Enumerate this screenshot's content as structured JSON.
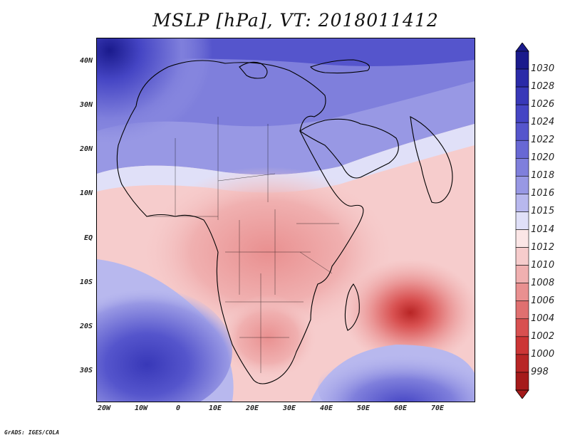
{
  "title": "MSLP [hPa], VT: 2018011412",
  "footer": "GrADS: IGES/COLA",
  "map": {
    "lat_labels": [
      "40N",
      "30N",
      "20N",
      "10N",
      "EQ",
      "10S",
      "20S",
      "30S"
    ],
    "lon_labels": [
      "20W",
      "10W",
      "0",
      "10E",
      "20E",
      "30E",
      "40E",
      "50E",
      "60E",
      "70E"
    ],
    "region": "Africa and Middle East",
    "features": [
      {
        "name": "high pressure North Atlantic / Mediterranean",
        "value": 1030
      },
      {
        "name": "high pressure South Atlantic",
        "value": 1024
      },
      {
        "name": "low pressure east of Madagascar",
        "value": 1000
      }
    ]
  },
  "colorbar": {
    "levels": [
      "1030",
      "1028",
      "1026",
      "1024",
      "1022",
      "1020",
      "1018",
      "1016",
      "1015",
      "1014",
      "1012",
      "1010",
      "1008",
      "1006",
      "1004",
      "1002",
      "1000",
      "998"
    ],
    "colors": [
      "#1a1a8c",
      "#2a2aa8",
      "#3838b8",
      "#4545c4",
      "#5555cc",
      "#6868d4",
      "#7f7fdc",
      "#9898e4",
      "#b8b8ee",
      "#e0e0f8",
      "#fbe6e6",
      "#f6cccc",
      "#f0b0b0",
      "#e99090",
      "#e07070",
      "#d85050",
      "#cc3535",
      "#b82525",
      "#a51a1a"
    ]
  }
}
